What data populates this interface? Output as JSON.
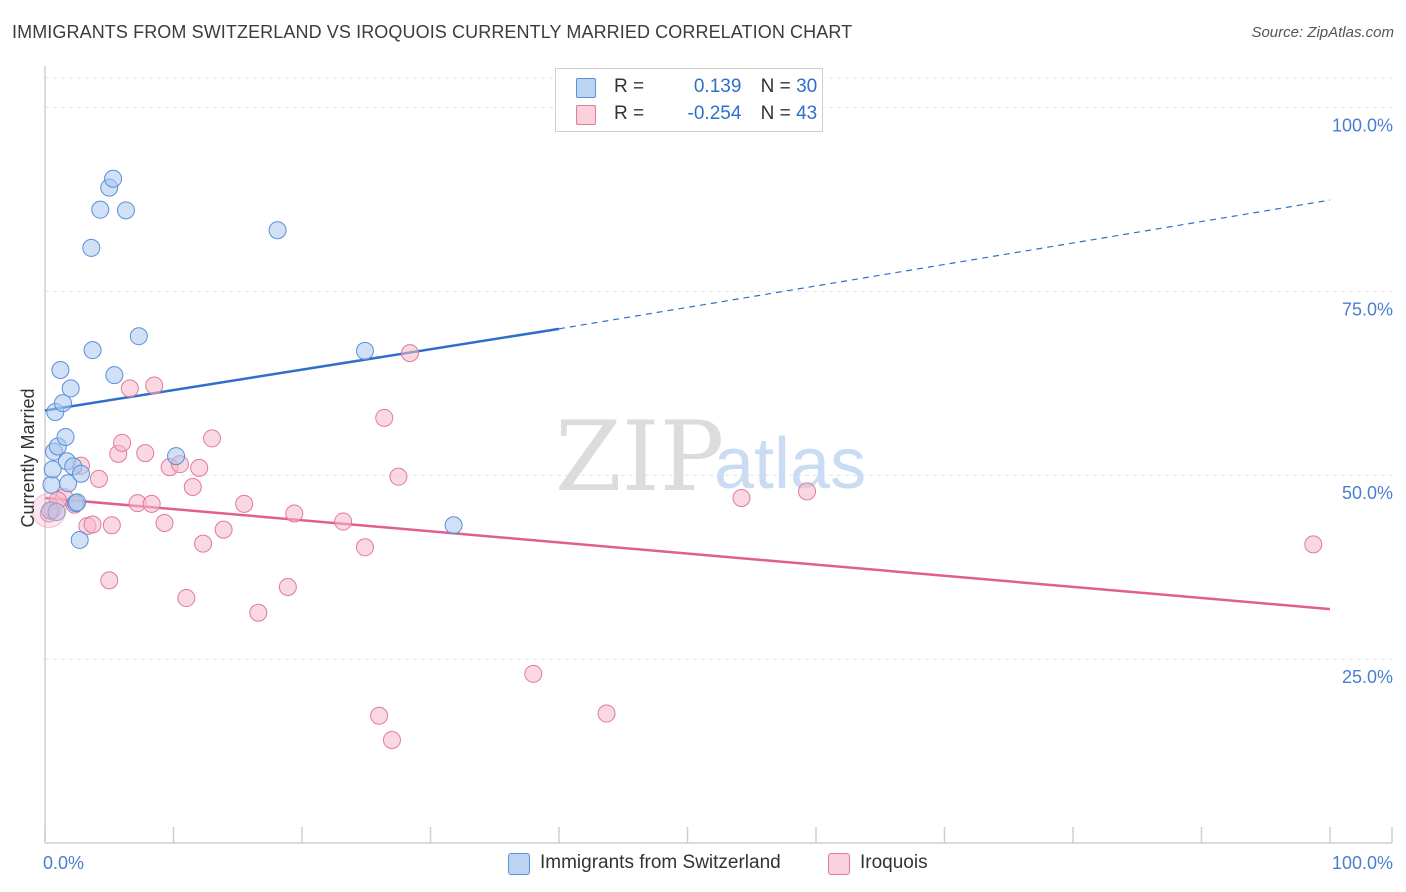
{
  "title": "IMMIGRANTS FROM SWITZERLAND VS IROQUOIS CURRENTLY MARRIED CORRELATION CHART",
  "source": "Source: ZipAtlas.com",
  "watermark": {
    "zip": "ZIP",
    "atlas": "atlas"
  },
  "legend_top": {
    "rows": [
      {
        "r_label": "R =",
        "r_value": "0.139",
        "n_label": "N =",
        "n_value": "30",
        "color": "#a9c8f0"
      },
      {
        "r_label": "R =",
        "r_value": "-0.254",
        "n_label": "N =",
        "n_value": "43",
        "color": "#f5b8cb"
      }
    ]
  },
  "legend_bottom": {
    "items": [
      {
        "label": "Immigrants from Switzerland",
        "color": "#a9c8f0"
      },
      {
        "label": "Iroquois",
        "color": "#f5b8cb"
      }
    ]
  },
  "chart_data": {
    "type": "scatter",
    "title": "IMMIGRANTS FROM SWITZERLAND VS IROQUOIS CURRENTLY MARRIED CORRELATION CHART",
    "xlabel": "",
    "ylabel": "Currently Married",
    "xlim": [
      0,
      100
    ],
    "ylim": [
      0,
      104
    ],
    "x_tick_labels": [
      "0.0%",
      "100.0%"
    ],
    "y_ticks": [
      25,
      50,
      75,
      100
    ],
    "y_tick_labels": [
      "25.0%",
      "50.0%",
      "75.0%",
      "100.0%"
    ],
    "grid": true,
    "series": [
      {
        "name": "Immigrants from Switzerland",
        "color": "#5b8fd6",
        "fill": "#a9c8f0",
        "line_color": "#2f6fcc",
        "trend": {
          "x0": 0,
          "y0": 58.8,
          "x1": 40,
          "y1": 69.9,
          "dash_to_x": 100,
          "dash_to_y": 87.4
        },
        "points": [
          [
            0.4,
            45.2
          ],
          [
            0.5,
            48.7
          ],
          [
            0.6,
            50.8
          ],
          [
            0.7,
            53.2
          ],
          [
            0.8,
            58.6
          ],
          [
            1.0,
            53.9
          ],
          [
            1.2,
            64.3
          ],
          [
            1.4,
            59.8
          ],
          [
            1.6,
            55.2
          ],
          [
            1.7,
            51.9
          ],
          [
            1.8,
            48.9
          ],
          [
            2.0,
            61.8
          ],
          [
            2.2,
            51.2
          ],
          [
            2.4,
            46.2
          ],
          [
            2.5,
            46.3
          ],
          [
            2.7,
            41.2
          ],
          [
            2.8,
            50.2
          ],
          [
            3.7,
            67.0
          ],
          [
            3.6,
            80.9
          ],
          [
            4.3,
            86.1
          ],
          [
            5.0,
            89.1
          ],
          [
            5.3,
            90.3
          ],
          [
            5.4,
            63.6
          ],
          [
            6.3,
            86.0
          ],
          [
            7.3,
            68.9
          ],
          [
            10.2,
            52.6
          ],
          [
            18.1,
            83.3
          ],
          [
            24.9,
            66.9
          ],
          [
            31.8,
            43.2
          ],
          [
            0.9,
            45.0
          ]
        ]
      },
      {
        "name": "Iroquois",
        "color": "#e07b9a",
        "fill": "#f5b8cb",
        "line_color": "#e0608c",
        "trend": {
          "x0": 0,
          "y0": 46.9,
          "x1": 100,
          "y1": 31.8
        },
        "points": [
          [
            0.3,
            44.8
          ],
          [
            0.6,
            45.3
          ],
          [
            1.5,
            47.0
          ],
          [
            2.3,
            46.0
          ],
          [
            2.8,
            51.3
          ],
          [
            3.3,
            43.1
          ],
          [
            3.7,
            43.3
          ],
          [
            4.2,
            49.5
          ],
          [
            5.0,
            35.7
          ],
          [
            5.2,
            43.2
          ],
          [
            5.7,
            52.9
          ],
          [
            6.0,
            54.4
          ],
          [
            6.6,
            61.8
          ],
          [
            7.2,
            46.2
          ],
          [
            7.8,
            53.0
          ],
          [
            8.3,
            46.1
          ],
          [
            8.5,
            62.2
          ],
          [
            9.3,
            43.5
          ],
          [
            9.7,
            51.1
          ],
          [
            10.5,
            51.5
          ],
          [
            11.0,
            33.3
          ],
          [
            11.5,
            48.4
          ],
          [
            12.0,
            51.0
          ],
          [
            12.3,
            40.7
          ],
          [
            13.0,
            55.0
          ],
          [
            13.9,
            42.6
          ],
          [
            15.5,
            46.1
          ],
          [
            16.6,
            31.3
          ],
          [
            18.9,
            34.8
          ],
          [
            19.4,
            44.8
          ],
          [
            23.2,
            43.7
          ],
          [
            24.9,
            40.2
          ],
          [
            26.0,
            17.3
          ],
          [
            26.4,
            57.8
          ],
          [
            27.0,
            14.0
          ],
          [
            27.5,
            49.8
          ],
          [
            28.4,
            66.6
          ],
          [
            38.0,
            23.0
          ],
          [
            43.7,
            17.6
          ],
          [
            54.2,
            46.9
          ],
          [
            59.3,
            47.8
          ],
          [
            98.7,
            40.6
          ],
          [
            1.0,
            46.6
          ]
        ]
      }
    ]
  }
}
